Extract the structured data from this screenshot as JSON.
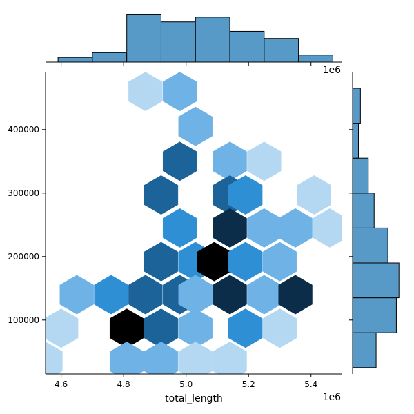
{
  "chart_data": {
    "type": "hexbin_jointplot",
    "xlabel": "total_length",
    "ylabel": "",
    "x_offset_label": "1e6",
    "top_offset_label": "1e6",
    "xlim": [
      4.55,
      5.5
    ],
    "ylim": [
      15000,
      490000
    ],
    "x_scale_factor": 1000000,
    "x_ticks": [
      4.6,
      4.8,
      5.0,
      5.2,
      5.4
    ],
    "x_tick_labels": [
      "4.6",
      "4.8",
      "5.0",
      "5.2",
      "5.4"
    ],
    "y_ticks": [
      100000,
      200000,
      300000,
      400000
    ],
    "y_tick_labels": [
      "100000",
      "200000",
      "300000",
      "400000"
    ],
    "color_scale": [
      "#ffffff",
      "#b5d8f2",
      "#6fb3e6",
      "#2e8fd4",
      "#1c6399",
      "#0b2d4a",
      "#000000"
    ],
    "hex_dx": 0.108,
    "hex_dy": 0.5,
    "hexbins": [
      {
        "x": 4.87,
        "y": 460000,
        "count": 1
      },
      {
        "x": 4.98,
        "y": 460000,
        "count": 2
      },
      {
        "x": 5.03,
        "y": 405000,
        "count": 2
      },
      {
        "x": 4.98,
        "y": 350000,
        "count": 4
      },
      {
        "x": 5.14,
        "y": 350000,
        "count": 2
      },
      {
        "x": 5.25,
        "y": 350000,
        "count": 1
      },
      {
        "x": 4.92,
        "y": 297000,
        "count": 4
      },
      {
        "x": 5.14,
        "y": 297000,
        "count": 4
      },
      {
        "x": 5.19,
        "y": 297000,
        "count": 3
      },
      {
        "x": 5.41,
        "y": 297000,
        "count": 1
      },
      {
        "x": 4.98,
        "y": 245000,
        "count": 3
      },
      {
        "x": 5.14,
        "y": 245000,
        "count": 5
      },
      {
        "x": 5.25,
        "y": 245000,
        "count": 2
      },
      {
        "x": 5.35,
        "y": 245000,
        "count": 2
      },
      {
        "x": 5.46,
        "y": 245000,
        "count": 1
      },
      {
        "x": 4.92,
        "y": 192000,
        "count": 4
      },
      {
        "x": 5.03,
        "y": 192000,
        "count": 3
      },
      {
        "x": 5.09,
        "y": 192000,
        "count": 6
      },
      {
        "x": 5.19,
        "y": 192000,
        "count": 3
      },
      {
        "x": 5.3,
        "y": 192000,
        "count": 2
      },
      {
        "x": 4.65,
        "y": 140000,
        "count": 2
      },
      {
        "x": 4.76,
        "y": 140000,
        "count": 3
      },
      {
        "x": 4.87,
        "y": 140000,
        "count": 4
      },
      {
        "x": 4.98,
        "y": 140000,
        "count": 4
      },
      {
        "x": 5.03,
        "y": 140000,
        "count": 2
      },
      {
        "x": 5.14,
        "y": 140000,
        "count": 5
      },
      {
        "x": 5.25,
        "y": 140000,
        "count": 2
      },
      {
        "x": 5.35,
        "y": 140000,
        "count": 5
      },
      {
        "x": 4.6,
        "y": 87000,
        "count": 1
      },
      {
        "x": 4.81,
        "y": 87000,
        "count": 6
      },
      {
        "x": 4.92,
        "y": 87000,
        "count": 4
      },
      {
        "x": 5.03,
        "y": 87000,
        "count": 2
      },
      {
        "x": 5.19,
        "y": 87000,
        "count": 3
      },
      {
        "x": 5.3,
        "y": 87000,
        "count": 1
      },
      {
        "x": 4.55,
        "y": 35000,
        "count": 1
      },
      {
        "x": 4.81,
        "y": 35000,
        "count": 2
      },
      {
        "x": 4.92,
        "y": 35000,
        "count": 2
      },
      {
        "x": 5.03,
        "y": 35000,
        "count": 1
      },
      {
        "x": 5.14,
        "y": 35000,
        "count": 1
      }
    ],
    "top_histogram": {
      "bin_edges": [
        4.59,
        4.7,
        4.81,
        4.92,
        5.03,
        5.14,
        5.25,
        5.36,
        5.47
      ],
      "counts": [
        1,
        2,
        10,
        8.5,
        9.5,
        6.5,
        5,
        1.5
      ],
      "ylim": [
        0,
        10.5
      ]
    },
    "right_histogram": {
      "bin_edges": [
        25000,
        80000,
        135000,
        190000,
        245000,
        300000,
        355000,
        410000,
        465000
      ],
      "counts": [
        3.6,
        6.7,
        7.1,
        5.4,
        3.3,
        2.4,
        0.9,
        1.2
      ],
      "xlim": [
        0,
        7.5
      ]
    }
  }
}
